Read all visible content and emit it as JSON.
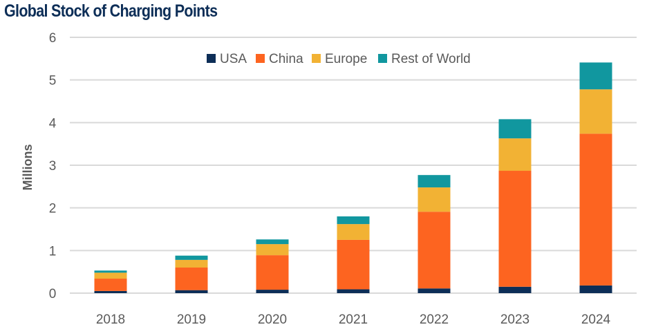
{
  "chart_data": {
    "type": "bar",
    "stacked": true,
    "title": "Global Stock of Charging Points",
    "xlabel": "",
    "ylabel": "Millions",
    "ylim": [
      0,
      6
    ],
    "yticks": [
      0,
      1,
      2,
      3,
      4,
      5,
      6
    ],
    "grid": true,
    "legend_position": "top-center",
    "categories": [
      "2018",
      "2019",
      "2020",
      "2021",
      "2022",
      "2023",
      "2024"
    ],
    "series": [
      {
        "name": "USA",
        "color": "#0d2e57",
        "values": [
          0.05,
          0.07,
          0.08,
          0.09,
          0.11,
          0.15,
          0.18
        ]
      },
      {
        "name": "China",
        "color": "#fd6420",
        "values": [
          0.29,
          0.53,
          0.81,
          1.16,
          1.8,
          2.72,
          3.56
        ]
      },
      {
        "name": "Europe",
        "color": "#f2b234",
        "values": [
          0.14,
          0.18,
          0.26,
          0.37,
          0.57,
          0.76,
          1.04
        ]
      },
      {
        "name": "Rest of World",
        "color": "#11979f",
        "values": [
          0.05,
          0.1,
          0.11,
          0.18,
          0.29,
          0.45,
          0.63
        ]
      }
    ]
  }
}
